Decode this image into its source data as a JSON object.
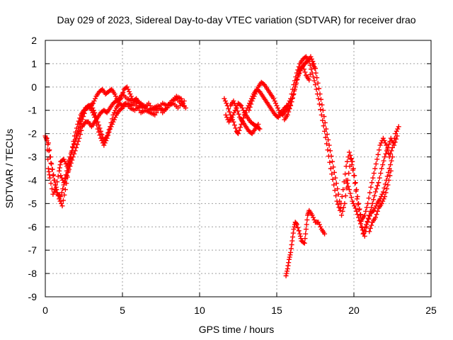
{
  "chart_data": {
    "type": "scatter",
    "title": "Day 029 of 2023, Sidereal Day-to-day VTEC variation (SDTVAR) for receiver drao",
    "xlabel": "GPS time / hours",
    "ylabel": "SDTVAR / TECUs",
    "xlim": [
      0,
      25
    ],
    "ylim": [
      -9,
      2
    ],
    "xticks": [
      0,
      5,
      10,
      15,
      20,
      25
    ],
    "yticks": [
      -9,
      -8,
      -7,
      -6,
      -5,
      -4,
      -3,
      -2,
      -1,
      0,
      1,
      2
    ],
    "grid": true,
    "marker": "plus",
    "series_color": "#ff0000",
    "segments": [
      [
        [
          0.0,
          -2.1
        ],
        [
          0.1,
          -2.3
        ],
        [
          0.2,
          -3.5
        ],
        [
          0.3,
          -3.9
        ],
        [
          0.5,
          -4.6
        ],
        [
          0.7,
          -4.3
        ],
        [
          0.9,
          -3.6
        ],
        [
          1.0,
          -3.2
        ],
        [
          1.2,
          -3.1
        ],
        [
          1.4,
          -3.4
        ],
        [
          1.6,
          -3.0
        ],
        [
          1.8,
          -2.6
        ],
        [
          2.0,
          -2.2
        ],
        [
          2.2,
          -1.9
        ],
        [
          2.4,
          -1.4
        ],
        [
          2.6,
          -1.0
        ],
        [
          2.8,
          -0.8
        ],
        [
          3.0,
          -0.8
        ],
        [
          3.2,
          -1.1
        ],
        [
          3.4,
          -1.5
        ],
        [
          3.6,
          -1.9
        ],
        [
          3.8,
          -2.3
        ],
        [
          4.0,
          -2.1
        ],
        [
          4.2,
          -1.7
        ],
        [
          4.4,
          -1.2
        ],
        [
          4.6,
          -0.9
        ],
        [
          4.8,
          -0.7
        ],
        [
          5.0,
          -0.8
        ],
        [
          5.2,
          -0.7
        ],
        [
          5.5,
          -0.9
        ],
        [
          5.8,
          -1.0
        ],
        [
          6.1,
          -0.8
        ],
        [
          6.4,
          -0.9
        ],
        [
          6.7,
          -0.7
        ],
        [
          7.0,
          -1.0
        ],
        [
          7.3,
          -0.9
        ],
        [
          7.6,
          -0.7
        ],
        [
          7.9,
          -0.8
        ],
        [
          8.2,
          -0.6
        ],
        [
          8.5,
          -0.5
        ],
        [
          8.8,
          -0.7
        ],
        [
          9.1,
          -0.9
        ]
      ],
      [
        [
          0.1,
          -2.2
        ],
        [
          0.3,
          -3.0
        ],
        [
          0.5,
          -3.8
        ],
        [
          0.7,
          -4.4
        ],
        [
          0.9,
          -4.8
        ],
        [
          1.1,
          -5.1
        ],
        [
          1.3,
          -4.4
        ],
        [
          1.5,
          -3.6
        ],
        [
          1.7,
          -2.8
        ],
        [
          1.9,
          -2.1
        ],
        [
          2.1,
          -1.6
        ],
        [
          2.3,
          -1.2
        ],
        [
          2.5,
          -1.0
        ],
        [
          2.7,
          -0.9
        ],
        [
          2.9,
          -0.8
        ],
        [
          3.1,
          -0.7
        ],
        [
          3.3,
          -0.4
        ],
        [
          3.5,
          -0.2
        ],
        [
          3.7,
          -0.1
        ],
        [
          3.9,
          -0.3
        ],
        [
          4.1,
          -0.2
        ],
        [
          4.3,
          -0.1
        ],
        [
          4.5,
          -0.3
        ],
        [
          4.7,
          -0.6
        ],
        [
          4.9,
          -0.5
        ],
        [
          5.1,
          -0.1
        ],
        [
          5.3,
          0.0
        ],
        [
          5.5,
          -0.3
        ],
        [
          5.7,
          -0.6
        ],
        [
          5.9,
          -0.5
        ],
        [
          6.1,
          -0.7
        ],
        [
          6.4,
          -0.8
        ],
        [
          6.7,
          -1.0
        ],
        [
          7.0,
          -0.9
        ],
        [
          7.3,
          -0.8
        ],
        [
          7.6,
          -1.1
        ],
        [
          7.9,
          -0.9
        ],
        [
          8.2,
          -0.6
        ],
        [
          8.5,
          -0.4
        ],
        [
          8.8,
          -0.5
        ],
        [
          9.0,
          -0.8
        ]
      ],
      [
        [
          0.2,
          -2.4
        ],
        [
          0.4,
          -3.3
        ],
        [
          0.6,
          -4.0
        ],
        [
          0.8,
          -4.6
        ],
        [
          1.0,
          -4.7
        ],
        [
          1.2,
          -4.2
        ],
        [
          1.4,
          -3.8
        ],
        [
          1.6,
          -3.4
        ],
        [
          1.8,
          -3.0
        ],
        [
          2.0,
          -2.6
        ],
        [
          2.2,
          -2.2
        ],
        [
          2.4,
          -1.7
        ],
        [
          2.6,
          -1.5
        ],
        [
          2.8,
          -1.5
        ],
        [
          3.0,
          -1.7
        ],
        [
          3.2,
          -1.5
        ],
        [
          3.4,
          -1.3
        ],
        [
          3.6,
          -1.1
        ],
        [
          3.8,
          -1.0
        ],
        [
          4.0,
          -1.1
        ],
        [
          4.2,
          -0.9
        ],
        [
          4.4,
          -0.7
        ],
        [
          4.6,
          -0.6
        ],
        [
          4.8,
          -0.5
        ],
        [
          5.0,
          -0.3
        ],
        [
          5.3,
          -0.5
        ],
        [
          5.6,
          -0.6
        ],
        [
          5.9,
          -0.8
        ],
        [
          6.2,
          -1.1
        ],
        [
          6.5,
          -1.0
        ],
        [
          6.8,
          -1.1
        ],
        [
          7.1,
          -1.2
        ],
        [
          7.4,
          -0.9
        ],
        [
          7.7,
          -1.0
        ],
        [
          8.0,
          -0.8
        ],
        [
          8.3,
          -0.7
        ],
        [
          8.6,
          -0.9
        ],
        [
          9.0,
          -0.6
        ]
      ],
      [
        [
          1.0,
          -3.8
        ],
        [
          1.2,
          -4.1
        ],
        [
          1.4,
          -3.6
        ],
        [
          1.6,
          -3.2
        ],
        [
          1.8,
          -2.6
        ],
        [
          2.0,
          -2.1
        ],
        [
          2.2,
          -1.6
        ],
        [
          2.4,
          -1.2
        ],
        [
          2.6,
          -0.9
        ],
        [
          2.8,
          -0.8
        ],
        [
          3.0,
          -1.0
        ],
        [
          3.2,
          -1.3
        ],
        [
          3.4,
          -1.8
        ],
        [
          3.6,
          -2.2
        ],
        [
          3.8,
          -2.5
        ],
        [
          4.0,
          -2.2
        ],
        [
          4.2,
          -1.8
        ],
        [
          4.4,
          -1.5
        ],
        [
          4.6,
          -1.2
        ],
        [
          4.8,
          -1.0
        ],
        [
          5.0,
          -0.9
        ],
        [
          5.3,
          -0.7
        ],
        [
          5.6,
          -0.8
        ],
        [
          5.9,
          -0.6
        ],
        [
          6.2,
          -0.7
        ]
      ],
      [
        [
          11.6,
          -0.5
        ],
        [
          11.8,
          -0.8
        ],
        [
          12.0,
          -1.2
        ],
        [
          12.2,
          -1.5
        ],
        [
          12.4,
          -1.9
        ],
        [
          12.5,
          -2.0
        ],
        [
          12.7,
          -1.6
        ],
        [
          12.9,
          -1.2
        ],
        [
          13.1,
          -0.9
        ],
        [
          13.3,
          -0.6
        ],
        [
          13.5,
          -0.3
        ],
        [
          13.7,
          -0.1
        ],
        [
          13.9,
          -0.2
        ],
        [
          14.1,
          -0.4
        ],
        [
          14.3,
          -0.6
        ],
        [
          14.5,
          -0.8
        ],
        [
          14.7,
          -1.0
        ],
        [
          14.9,
          -1.2
        ],
        [
          15.1,
          -1.3
        ],
        [
          15.3,
          -1.1
        ],
        [
          15.5,
          -0.9
        ],
        [
          15.7,
          -0.8
        ],
        [
          15.9,
          -0.5
        ],
        [
          16.1,
          0.1
        ],
        [
          16.3,
          0.6
        ],
        [
          16.5,
          1.0
        ],
        [
          16.7,
          1.2
        ],
        [
          16.9,
          1.3
        ],
        [
          17.1,
          1.1
        ],
        [
          17.3,
          0.6
        ],
        [
          17.5,
          0.1
        ],
        [
          17.7,
          -0.5
        ],
        [
          17.9,
          -1.2
        ],
        [
          18.1,
          -1.9
        ],
        [
          18.3,
          -2.7
        ],
        [
          18.5,
          -3.5
        ],
        [
          18.7,
          -4.2
        ],
        [
          18.9,
          -4.9
        ],
        [
          19.1,
          -5.3
        ],
        [
          19.3,
          -4.4
        ],
        [
          19.5,
          -3.4
        ],
        [
          19.7,
          -2.8
        ],
        [
          19.9,
          -3.2
        ],
        [
          20.1,
          -4.1
        ],
        [
          20.3,
          -5.0
        ],
        [
          20.5,
          -5.7
        ],
        [
          20.7,
          -5.5
        ],
        [
          20.9,
          -5.0
        ],
        [
          21.1,
          -4.3
        ],
        [
          21.3,
          -3.7
        ],
        [
          21.5,
          -3.1
        ],
        [
          21.7,
          -2.5
        ],
        [
          21.9,
          -2.2
        ],
        [
          22.1,
          -2.5
        ],
        [
          22.3,
          -3.0
        ],
        [
          22.5,
          -2.6
        ],
        [
          22.7,
          -2.0
        ],
        [
          22.9,
          -1.7
        ]
      ],
      [
        [
          11.7,
          -1.2
        ],
        [
          11.9,
          -1.5
        ],
        [
          12.1,
          -1.3
        ],
        [
          12.3,
          -1.0
        ],
        [
          12.5,
          -0.7
        ],
        [
          12.7,
          -0.8
        ],
        [
          12.9,
          -1.1
        ],
        [
          13.1,
          -1.3
        ],
        [
          13.3,
          -1.5
        ],
        [
          13.5,
          -1.6
        ],
        [
          13.7,
          -1.7
        ],
        [
          13.9,
          -1.8
        ]
      ],
      [
        [
          12.0,
          -0.8
        ],
        [
          12.2,
          -0.6
        ],
        [
          12.4,
          -0.9
        ],
        [
          12.6,
          -1.3
        ],
        [
          12.8,
          -1.5
        ],
        [
          13.0,
          -1.7
        ],
        [
          13.2,
          -1.9
        ],
        [
          13.4,
          -2.0
        ],
        [
          13.6,
          -1.8
        ],
        [
          13.8,
          -1.6
        ]
      ],
      [
        [
          13.2,
          -1.0
        ],
        [
          13.4,
          -0.6
        ],
        [
          13.6,
          -0.3
        ],
        [
          13.8,
          0.0
        ],
        [
          14.0,
          0.2
        ],
        [
          14.2,
          0.1
        ],
        [
          14.4,
          -0.1
        ],
        [
          14.6,
          -0.3
        ],
        [
          14.8,
          -0.5
        ],
        [
          15.0,
          -0.8
        ],
        [
          15.2,
          -1.1
        ],
        [
          15.4,
          -1.2
        ],
        [
          15.6,
          -1.0
        ],
        [
          15.8,
          -0.9
        ],
        [
          16.0,
          -0.5
        ],
        [
          16.2,
          0.0
        ],
        [
          16.4,
          0.5
        ],
        [
          16.6,
          0.8
        ],
        [
          16.8,
          1.0
        ],
        [
          17.0,
          1.1
        ],
        [
          17.2,
          1.3
        ],
        [
          17.4,
          1.0
        ],
        [
          17.6,
          0.4
        ],
        [
          17.8,
          -0.3
        ],
        [
          18.0,
          -1.0
        ],
        [
          18.2,
          -1.8
        ],
        [
          18.4,
          -2.5
        ],
        [
          18.6,
          -3.2
        ],
        [
          18.8,
          -3.9
        ],
        [
          19.0,
          -4.6
        ],
        [
          19.2,
          -5.5
        ],
        [
          19.4,
          -5.0
        ],
        [
          19.6,
          -4.0
        ],
        [
          19.8,
          -3.1
        ],
        [
          20.0,
          -3.8
        ],
        [
          20.2,
          -4.8
        ],
        [
          20.4,
          -5.5
        ],
        [
          20.6,
          -6.3
        ],
        [
          20.8,
          -5.9
        ],
        [
          21.0,
          -5.5
        ],
        [
          21.2,
          -5.0
        ],
        [
          21.4,
          -4.5
        ],
        [
          21.6,
          -4.1
        ],
        [
          21.8,
          -3.5
        ],
        [
          22.0,
          -3.0
        ],
        [
          22.2,
          -2.6
        ],
        [
          22.4,
          -2.2
        ],
        [
          22.6,
          -2.5
        ],
        [
          22.8,
          -2.1
        ]
      ],
      [
        [
          15.5,
          -1.4
        ],
        [
          15.7,
          -1.2
        ],
        [
          15.9,
          -0.8
        ],
        [
          16.1,
          -0.3
        ],
        [
          16.3,
          0.3
        ],
        [
          16.5,
          0.7
        ],
        [
          16.7,
          0.9
        ],
        [
          16.9,
          0.5
        ],
        [
          17.1,
          0.3
        ],
        [
          17.3,
          1.0
        ],
        [
          17.5,
          0.8
        ]
      ],
      [
        [
          19.5,
          -4.0
        ],
        [
          19.7,
          -4.4
        ],
        [
          19.9,
          -4.9
        ],
        [
          20.1,
          -5.2
        ],
        [
          20.3,
          -5.6
        ],
        [
          20.5,
          -6.0
        ],
        [
          20.7,
          -6.4
        ],
        [
          20.9,
          -5.8
        ],
        [
          21.1,
          -5.4
        ],
        [
          21.3,
          -5.3
        ],
        [
          21.5,
          -5.0
        ],
        [
          21.7,
          -4.8
        ],
        [
          21.9,
          -4.5
        ],
        [
          22.1,
          -4.0
        ],
        [
          22.3,
          -3.5
        ],
        [
          22.5,
          -3.0
        ]
      ],
      [
        [
          21.0,
          -6.2
        ],
        [
          21.2,
          -5.8
        ],
        [
          21.4,
          -5.6
        ],
        [
          21.6,
          -5.2
        ],
        [
          21.8,
          -5.0
        ],
        [
          22.0,
          -4.7
        ],
        [
          22.2,
          -4.2
        ],
        [
          22.4,
          -3.6
        ]
      ],
      [
        [
          15.6,
          -8.1
        ],
        [
          15.7,
          -7.8
        ],
        [
          15.8,
          -7.4
        ],
        [
          15.9,
          -7.1
        ],
        [
          16.0,
          -6.6
        ],
        [
          16.1,
          -6.1
        ],
        [
          16.2,
          -5.8
        ],
        [
          16.3,
          -5.9
        ],
        [
          16.5,
          -6.3
        ],
        [
          16.6,
          -6.6
        ],
        [
          16.8,
          -6.7
        ],
        [
          16.9,
          -6.1
        ],
        [
          17.0,
          -5.5
        ],
        [
          17.1,
          -5.3
        ],
        [
          17.3,
          -5.5
        ],
        [
          17.5,
          -5.8
        ],
        [
          17.7,
          -5.8
        ],
        [
          17.9,
          -6.1
        ],
        [
          18.1,
          -6.3
        ]
      ]
    ]
  }
}
